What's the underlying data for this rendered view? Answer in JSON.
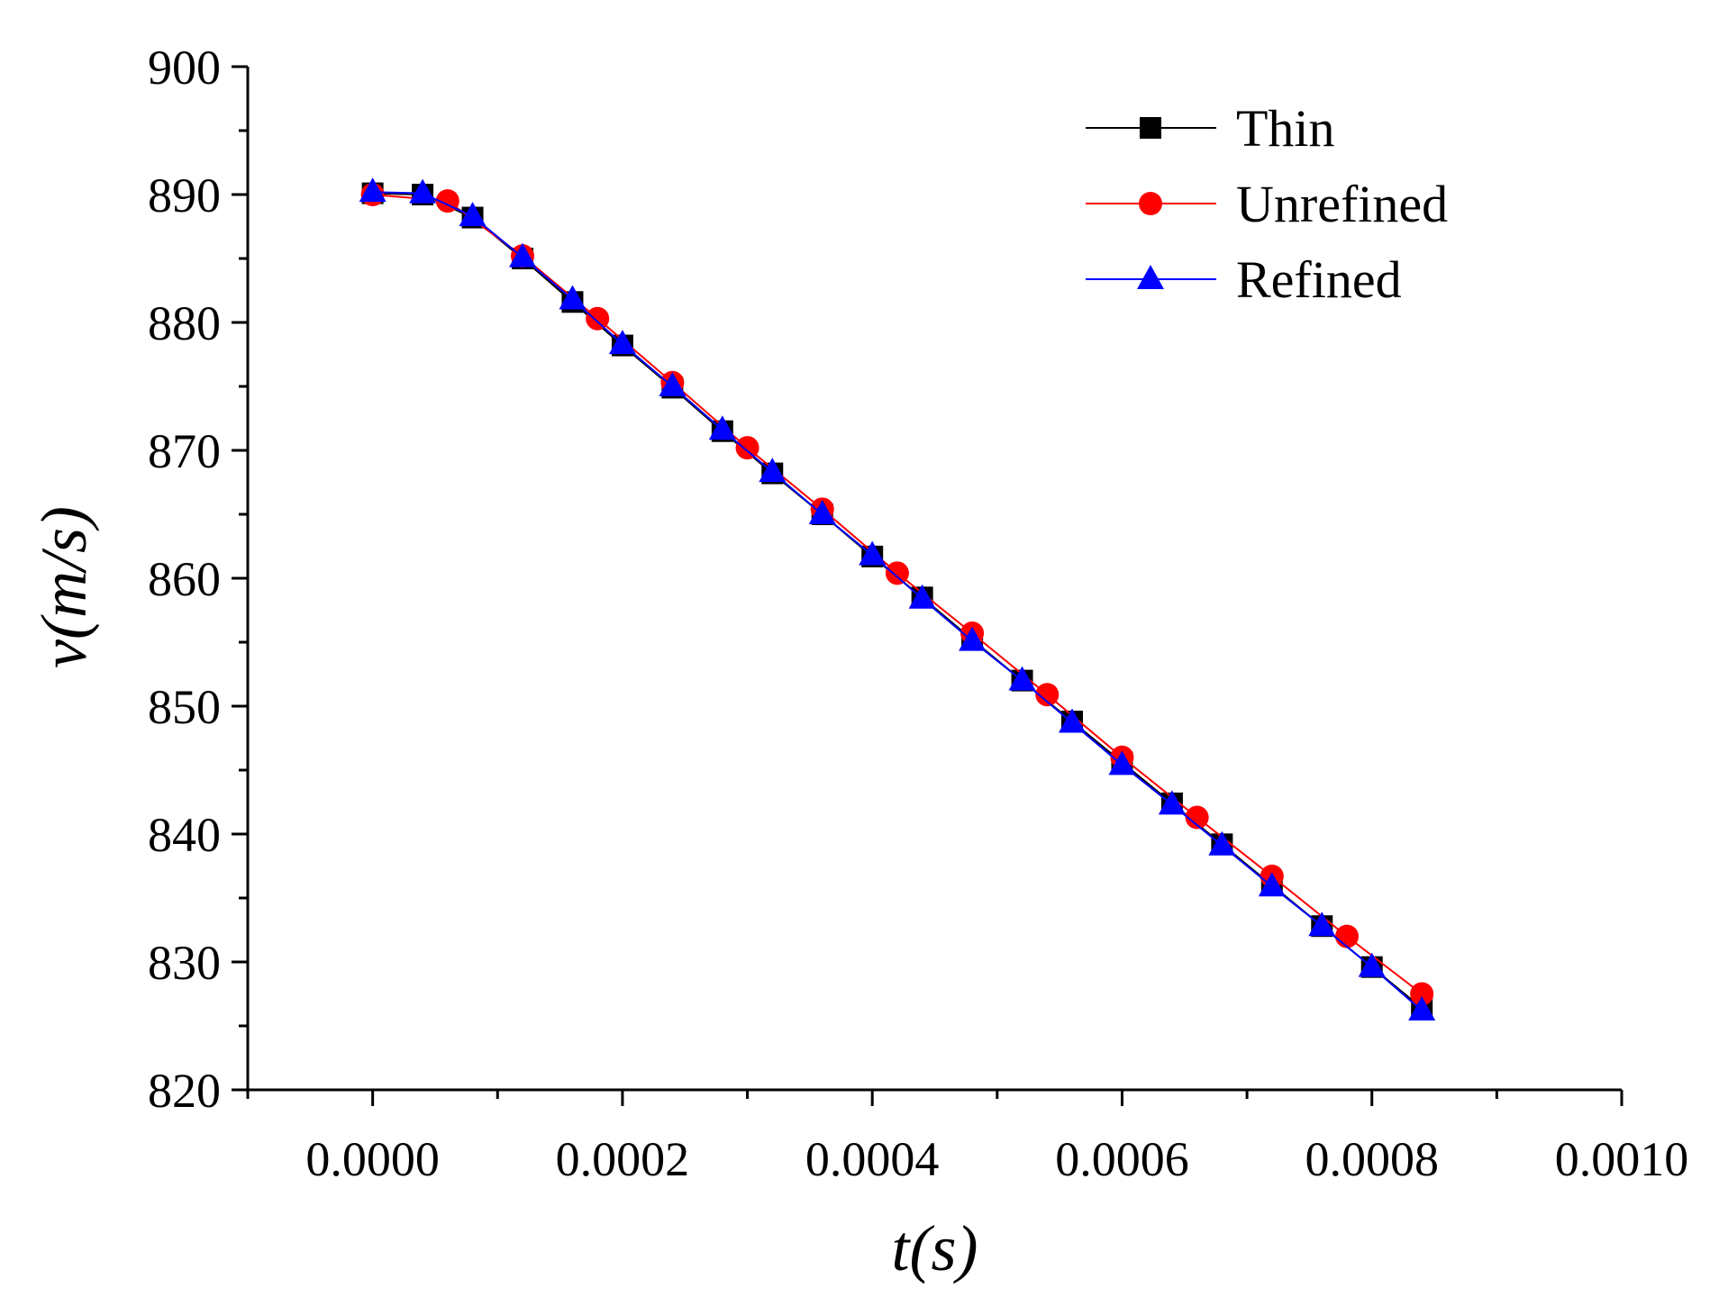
{
  "chart_data": {
    "type": "line",
    "title": "",
    "xlabel": "t(s)",
    "ylabel": "v(m/s)",
    "xlim": [
      -0.0001,
      0.001
    ],
    "ylim": [
      820,
      900
    ],
    "x_ticks": [
      0.0,
      0.0002,
      0.0004,
      0.0006,
      0.0008,
      0.001
    ],
    "x_tick_labels": [
      "0.0000",
      "0.0002",
      "0.0004",
      "0.0006",
      "0.0008",
      "0.0010"
    ],
    "y_ticks": [
      820,
      830,
      840,
      850,
      860,
      870,
      880,
      890,
      900
    ],
    "y_tick_labels": [
      "820",
      "830",
      "840",
      "850",
      "860",
      "870",
      "880",
      "890",
      "900"
    ],
    "grid": false,
    "legend_position": "top-right",
    "series": [
      {
        "name": "Thin",
        "color": "#000000",
        "marker": "square",
        "x": [
          0.0,
          4e-05,
          8e-05,
          0.00012,
          0.00016,
          0.0002,
          0.00024,
          0.00028,
          0.00032,
          0.00036,
          0.0004,
          0.00044,
          0.00048,
          0.00052,
          0.00056,
          0.0006,
          0.00064,
          0.00068,
          0.00072,
          0.00076,
          0.0008,
          0.00084
        ],
        "values": [
          890.1,
          890.0,
          888.2,
          885.0,
          881.6,
          878.2,
          874.9,
          871.5,
          868.2,
          865.0,
          861.7,
          858.5,
          855.2,
          852.0,
          848.8,
          845.6,
          842.4,
          839.2,
          836.0,
          832.8,
          829.6,
          826.4
        ]
      },
      {
        "name": "Unrefined",
        "color": "#ff0000",
        "marker": "circle",
        "x": [
          0.0,
          6e-05,
          0.00012,
          0.00018,
          0.00024,
          0.0003,
          0.00036,
          0.00042,
          0.00048,
          0.00054,
          0.0006,
          0.00066,
          0.00072,
          0.00078,
          0.00084
        ],
        "values": [
          890.0,
          889.5,
          885.2,
          880.3,
          875.3,
          870.2,
          865.4,
          860.4,
          855.7,
          850.9,
          846.0,
          841.3,
          836.7,
          832.0,
          827.5
        ]
      },
      {
        "name": "Refined",
        "color": "#0000ff",
        "marker": "triangle",
        "x": [
          0.0,
          4e-05,
          8e-05,
          0.00012,
          0.00016,
          0.0002,
          0.00024,
          0.00028,
          0.00032,
          0.00036,
          0.0004,
          0.00044,
          0.00048,
          0.00052,
          0.00056,
          0.0006,
          0.00064,
          0.00068,
          0.00072,
          0.00076,
          0.0008,
          0.00084
        ],
        "values": [
          890.2,
          890.1,
          888.3,
          885.1,
          881.8,
          878.3,
          875.0,
          871.6,
          868.3,
          865.0,
          861.8,
          858.4,
          855.1,
          852.0,
          848.7,
          845.4,
          842.3,
          839.1,
          835.9,
          832.8,
          829.6,
          826.2
        ]
      }
    ]
  }
}
